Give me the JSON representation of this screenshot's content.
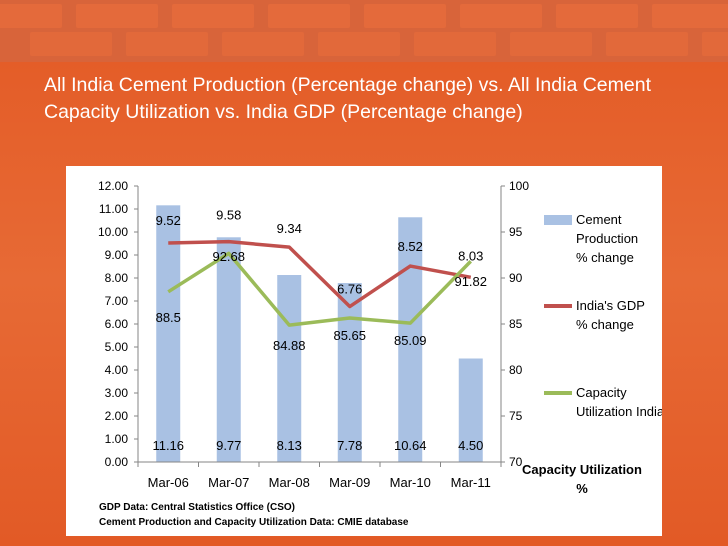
{
  "slide": {
    "title": "All India Cement Production (Percentage change) vs. All India Cement Capacity Utilization vs. India GDP (Percentage change)"
  },
  "colors": {
    "background": "#e0602c",
    "bar": "#a9c1e3",
    "gdp_line": "#c0504d",
    "capacity_line": "#9bbb59"
  },
  "chart_data": {
    "type": "bar",
    "categories": [
      "Mar-06",
      "Mar-07",
      "Mar-08",
      "Mar-09",
      "Mar-10",
      "Mar-11"
    ],
    "y_left": {
      "ylim": [
        0,
        12
      ],
      "ticks": [
        "0.00",
        "1.00",
        "2.00",
        "3.00",
        "4.00",
        "5.00",
        "6.00",
        "7.00",
        "8.00",
        "9.00",
        "10.00",
        "11.00",
        "12.00"
      ]
    },
    "y_right": {
      "ylim": [
        70,
        100
      ],
      "ticks": [
        "70",
        "75",
        "80",
        "85",
        "90",
        "95",
        "100"
      ],
      "label_lines": [
        "Capacity Utilization",
        "%"
      ]
    },
    "series": [
      {
        "name_lines": [
          "Cement",
          "Production",
          "% change"
        ],
        "type": "bar",
        "axis": "left",
        "values": [
          11.16,
          9.77,
          8.13,
          7.78,
          10.64,
          4.5
        ],
        "labels": [
          "11.16",
          "9.77",
          "8.13",
          "7.78",
          "10.64",
          "4.50"
        ]
      },
      {
        "name_lines": [
          "India's GDP",
          "% change"
        ],
        "type": "line",
        "axis": "left",
        "values": [
          9.52,
          9.58,
          9.34,
          6.76,
          8.52,
          8.03
        ],
        "labels": [
          "9.52",
          "9.58",
          "9.34",
          "6.76",
          "8.52",
          "8.03"
        ]
      },
      {
        "name_lines": [
          "Capacity",
          "Utilization India"
        ],
        "type": "line",
        "axis": "right",
        "values": [
          88.5,
          92.68,
          84.88,
          85.65,
          85.09,
          91.82
        ],
        "labels": [
          "88.5",
          "92.68",
          "84.88",
          "85.65",
          "85.09",
          "91.82"
        ]
      }
    ],
    "grid": false,
    "legend_position": "right",
    "notes": [
      "GDP Data: Central Statistics Office (CSO)",
      "Cement Production and Capacity Utilization Data: CMIE database"
    ]
  }
}
